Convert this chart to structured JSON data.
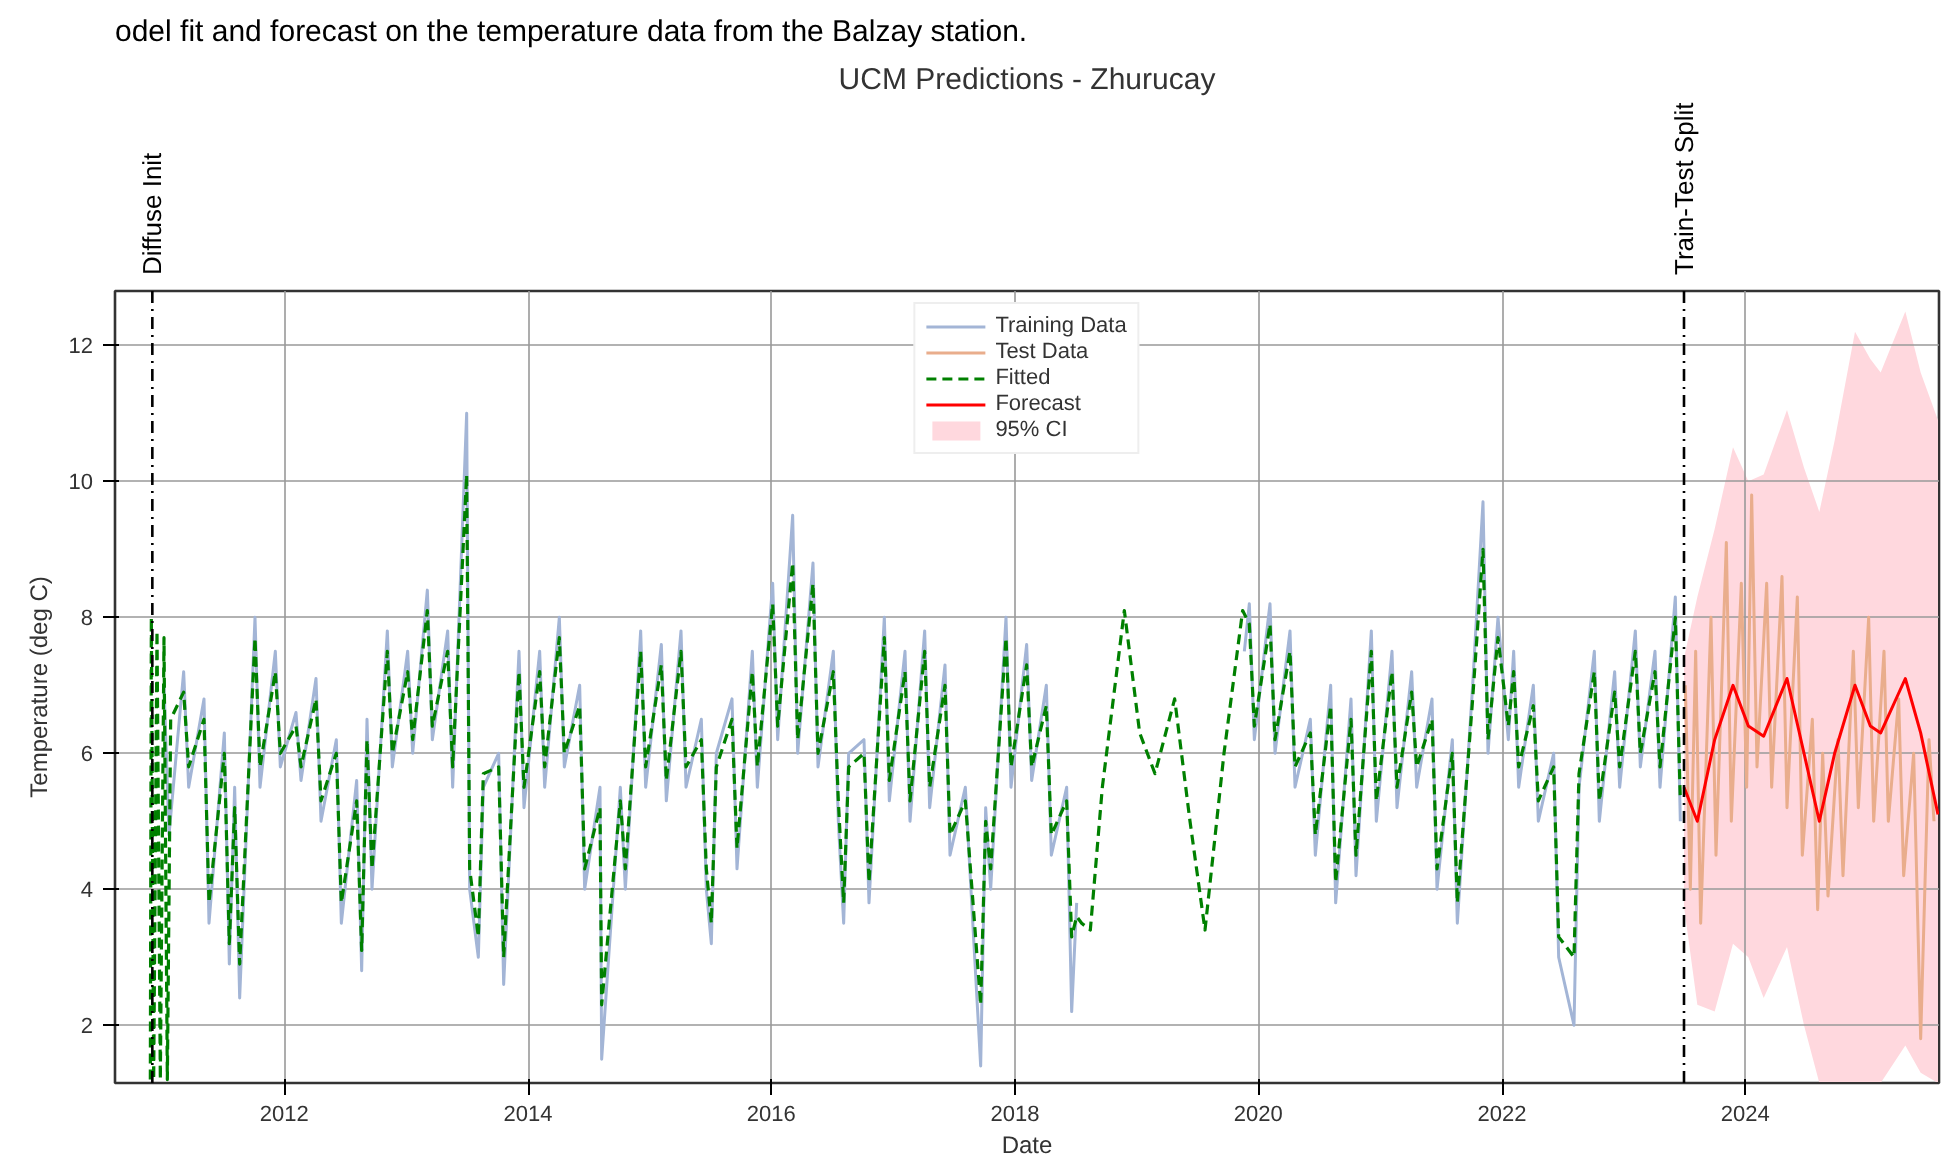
{
  "chart_data": {
    "type": "line",
    "title": "UCM Predictions - Zhurucay",
    "annotations": [
      "odel fit and forecast on the temperature data from the Balzay station."
    ],
    "xlabel": "Date",
    "ylabel": "Temperature (deg C)",
    "xlim": [
      "2010-08-11",
      "2025-08-04"
    ],
    "ylim": [
      1.15,
      12.8
    ],
    "xticks": [
      {
        "value": "2012",
        "label": "2012"
      },
      {
        "value": "2014",
        "label": "2014"
      },
      {
        "value": "2016",
        "label": "2016"
      },
      {
        "value": "2018",
        "label": "2018"
      },
      {
        "value": "2020",
        "label": "2020"
      },
      {
        "value": "2022",
        "label": "2022"
      },
      {
        "value": "2024",
        "label": "2024"
      }
    ],
    "yticks": [
      2,
      4,
      6,
      8,
      10,
      12
    ],
    "grid": true,
    "legend": "top",
    "ref_lines": [
      {
        "axis": "x",
        "value": "2010-12-01",
        "label": "Diffuse Init",
        "color": "#000000",
        "line_style": "dashdot"
      },
      {
        "axis": "x",
        "value": "2023-07-01",
        "label": "Train-Test Split",
        "color": "#000000",
        "line_style": "dashdot"
      }
    ],
    "series": [
      {
        "name": "Training Data",
        "color": "#a3b5d6",
        "line_style": "solid",
        "x": [
          "2011-01-05",
          "2011-01-20",
          "2011-03-05",
          "2011-03-20",
          "2011-05-05",
          "2011-05-20",
          "2011-07-05",
          "2011-07-20",
          "2011-08-05",
          "2011-08-20",
          "2011-10-05",
          "2011-10-20",
          "2011-12-05",
          "2011-12-20",
          "2012-02-05",
          "2012-02-20",
          "2012-04-05",
          "2012-04-20",
          "2012-06-05",
          "2012-06-20",
          "2012-08-05",
          "2012-08-20",
          "2012-09-05",
          "2012-09-20",
          "2012-11-05",
          "2012-11-20",
          "2013-01-05",
          "2013-01-20",
          "2013-03-05",
          "2013-03-20",
          "2013-05-05",
          "2013-05-20",
          "2013-07-01",
          "2013-07-10",
          "2013-08-05",
          "2013-08-20",
          "2013-10-05",
          "2013-10-20",
          "2013-12-05",
          "2013-12-20",
          "2014-02-05",
          "2014-02-20",
          "2014-04-05",
          "2014-04-20",
          "2014-06-05",
          "2014-06-20",
          "2014-08-05",
          "2014-08-10",
          "2014-10-05",
          "2014-10-20",
          "2014-12-05",
          "2014-12-20",
          "2015-02-05",
          "2015-02-20",
          "2015-04-05",
          "2015-04-20",
          "2015-06-05",
          "2015-06-20",
          "2015-07-05",
          "2015-07-20",
          "2015-09-05",
          "2015-09-20",
          "2015-11-05",
          "2015-11-20",
          "2016-01-05",
          "2016-01-20",
          "2016-03-05",
          "2016-03-20",
          "2016-05-05",
          "2016-05-20",
          "2016-07-05",
          "2016-07-20",
          "2016-08-05",
          "2016-08-20",
          "2016-10-05",
          "2016-10-20",
          "2016-12-05",
          "2016-12-20",
          "2017-02-05",
          "2017-02-20",
          "2017-04-05",
          "2017-04-20",
          "2017-06-05",
          "2017-06-20",
          "2017-08-05",
          "2017-09-20",
          "2017-10-05",
          "2017-10-20",
          "2017-12-05",
          "2017-12-20",
          "2018-02-05",
          "2018-02-20",
          "2018-04-05",
          "2018-04-20",
          "2018-06-05",
          "2018-06-20",
          "2018-07-05",
          "2019-01-01",
          "2019-11-20",
          "2019-12-05",
          "2019-12-20",
          "2020-02-05",
          "2020-02-20",
          "2020-04-05",
          "2020-04-20",
          "2020-06-05",
          "2020-06-20",
          "2020-08-05",
          "2020-08-20",
          "2020-10-05",
          "2020-10-20",
          "2020-12-05",
          "2020-12-20",
          "2021-02-05",
          "2021-02-20",
          "2021-04-05",
          "2021-04-20",
          "2021-06-05",
          "2021-06-20",
          "2021-08-05",
          "2021-08-20",
          "2021-10-05",
          "2021-11-05",
          "2021-11-20",
          "2021-12-20",
          "2022-01-20",
          "2022-02-05",
          "2022-02-20",
          "2022-04-05",
          "2022-04-20",
          "2022-06-05",
          "2022-06-20",
          "2022-08-05",
          "2022-08-20",
          "2022-10-05",
          "2022-10-20",
          "2022-12-05",
          "2022-12-20",
          "2023-02-05",
          "2023-02-20",
          "2023-04-05",
          "2023-04-20",
          "2023-06-05",
          "2023-06-20"
        ],
        "values": [
          7.0,
          4.8,
          7.2,
          5.5,
          6.8,
          3.5,
          6.3,
          2.9,
          5.5,
          2.4,
          8.0,
          5.5,
          7.5,
          5.8,
          6.6,
          5.6,
          7.1,
          5.0,
          6.2,
          3.5,
          5.6,
          2.8,
          6.5,
          4.0,
          7.8,
          5.8,
          7.5,
          6.0,
          8.4,
          6.2,
          7.8,
          5.5,
          11.0,
          4.0,
          3.0,
          5.5,
          6.0,
          2.6,
          7.5,
          5.2,
          7.5,
          5.5,
          8.0,
          5.8,
          7.0,
          4.0,
          5.5,
          1.5,
          5.5,
          4.0,
          7.8,
          5.5,
          7.6,
          5.3,
          7.8,
          5.5,
          6.5,
          4.0,
          3.2,
          6.0,
          6.8,
          4.3,
          7.5,
          5.5,
          8.5,
          6.2,
          9.5,
          6.0,
          8.8,
          5.8,
          7.5,
          5.0,
          3.5,
          6.0,
          6.2,
          3.8,
          8.0,
          5.3,
          7.5,
          5.0,
          7.8,
          5.2,
          7.3,
          4.5,
          5.5,
          1.4,
          5.2,
          4.0,
          8.0,
          5.5,
          7.6,
          5.6,
          7.0,
          4.5,
          5.5,
          2.2,
          3.8,
          null,
          7.5,
          8.2,
          6.2,
          8.2,
          6.0,
          7.8,
          5.5,
          6.5,
          4.5,
          7.0,
          3.8,
          6.8,
          4.2,
          7.8,
          5.0,
          7.5,
          5.2,
          7.2,
          5.5,
          6.8,
          4.0,
          6.2,
          3.5,
          7.0,
          9.7,
          6.0,
          8.0,
          6.2,
          7.5,
          5.5,
          7.0,
          5.0,
          6.0,
          3.0,
          2.0,
          5.5,
          7.5,
          5.0,
          7.2,
          5.5,
          7.8,
          5.8,
          7.5,
          5.5,
          8.3,
          5.0
        ]
      },
      {
        "name": "Test Data",
        "color": "#e9ad8c",
        "line_style": "solid",
        "x": [
          "2023-07-05",
          "2023-07-20",
          "2023-08-05",
          "2023-08-20",
          "2023-09-20",
          "2023-10-05",
          "2023-11-05",
          "2023-11-20",
          "2023-12-20",
          "2024-01-05",
          "2024-01-20",
          "2024-02-05",
          "2024-03-05",
          "2024-03-20",
          "2024-04-20",
          "2024-05-05",
          "2024-06-05",
          "2024-06-20",
          "2024-07-20",
          "2024-08-05",
          "2024-08-20",
          "2024-09-05",
          "2024-10-05",
          "2024-10-20",
          "2024-11-20",
          "2024-12-05",
          "2025-01-05",
          "2025-01-20",
          "2025-02-20",
          "2025-03-05",
          "2025-04-05",
          "2025-04-20",
          "2025-05-20",
          "2025-06-10",
          "2025-07-05",
          "2025-07-20"
        ],
        "values": [
          7.0,
          4.0,
          7.5,
          3.5,
          8.0,
          4.5,
          9.1,
          5.0,
          8.5,
          5.5,
          9.8,
          5.8,
          8.5,
          5.5,
          8.6,
          5.2,
          8.3,
          4.5,
          6.5,
          3.7,
          6.0,
          3.9,
          6.2,
          4.2,
          7.5,
          5.2,
          8.0,
          5.0,
          7.5,
          5.0,
          6.8,
          4.2,
          6.0,
          1.8,
          6.2,
          5.0
        ]
      },
      {
        "name": "Fitted",
        "color": "#008000",
        "line_style": "dashed",
        "x": [
          "2010-11-25",
          "2010-11-28",
          "2010-12-05",
          "2010-12-15",
          "2010-12-25",
          "2011-01-05",
          "2011-01-15",
          "2011-01-25",
          "2011-03-05",
          "2011-03-20",
          "2011-05-05",
          "2011-05-20",
          "2011-07-05",
          "2011-07-20",
          "2011-08-05",
          "2011-08-20",
          "2011-10-05",
          "2011-10-20",
          "2011-12-05",
          "2011-12-20",
          "2012-02-05",
          "2012-02-20",
          "2012-04-05",
          "2012-04-20",
          "2012-06-05",
          "2012-06-20",
          "2012-08-05",
          "2012-08-20",
          "2012-09-05",
          "2012-09-20",
          "2012-11-05",
          "2012-11-20",
          "2013-01-05",
          "2013-01-20",
          "2013-03-05",
          "2013-03-20",
          "2013-05-05",
          "2013-05-20",
          "2013-07-01",
          "2013-07-10",
          "2013-08-05",
          "2013-08-20",
          "2013-10-05",
          "2013-10-20",
          "2013-12-05",
          "2013-12-20",
          "2014-02-05",
          "2014-02-20",
          "2014-04-05",
          "2014-04-20",
          "2014-06-05",
          "2014-06-20",
          "2014-08-05",
          "2014-08-10",
          "2014-10-05",
          "2014-10-20",
          "2014-12-05",
          "2014-12-20",
          "2015-02-05",
          "2015-02-20",
          "2015-04-05",
          "2015-04-20",
          "2015-06-05",
          "2015-06-20",
          "2015-07-05",
          "2015-07-20",
          "2015-09-05",
          "2015-09-20",
          "2015-11-05",
          "2015-11-20",
          "2016-01-05",
          "2016-01-20",
          "2016-03-05",
          "2016-03-20",
          "2016-05-05",
          "2016-05-20",
          "2016-07-05",
          "2016-07-20",
          "2016-08-05",
          "2016-08-20",
          "2016-10-05",
          "2016-10-20",
          "2016-12-05",
          "2016-12-20",
          "2017-02-05",
          "2017-02-20",
          "2017-04-05",
          "2017-04-20",
          "2017-06-05",
          "2017-06-20",
          "2017-08-05",
          "2017-09-20",
          "2017-10-05",
          "2017-10-20",
          "2017-12-05",
          "2017-12-20",
          "2018-02-05",
          "2018-02-20",
          "2018-04-05",
          "2018-04-20",
          "2018-06-05",
          "2018-06-20",
          "2018-07-05",
          "2018-07-20",
          "2018-08-15",
          "2018-09-20",
          "2018-11-25",
          "2019-01-10",
          "2019-02-25",
          "2019-04-25",
          "2019-06-10",
          "2019-07-25",
          "2019-09-20",
          "2019-11-15",
          "2019-12-05",
          "2019-12-20",
          "2020-02-05",
          "2020-02-20",
          "2020-04-05",
          "2020-04-20",
          "2020-06-05",
          "2020-06-20",
          "2020-08-05",
          "2020-08-20",
          "2020-10-05",
          "2020-10-20",
          "2020-12-05",
          "2020-12-20",
          "2021-02-05",
          "2021-02-20",
          "2021-04-05",
          "2021-04-20",
          "2021-06-05",
          "2021-06-20",
          "2021-08-05",
          "2021-08-20",
          "2021-10-05",
          "2021-11-05",
          "2021-11-20",
          "2021-12-20",
          "2022-01-20",
          "2022-02-05",
          "2022-02-20",
          "2022-04-05",
          "2022-04-20",
          "2022-06-05",
          "2022-06-20",
          "2022-08-05",
          "2022-08-20",
          "2022-10-05",
          "2022-10-20",
          "2022-12-05",
          "2022-12-20",
          "2023-02-05",
          "2023-02-20",
          "2023-04-05",
          "2023-04-20",
          "2023-06-05",
          "2023-06-20"
        ],
        "values": [
          1.2,
          8.0,
          1.2,
          7.8,
          1.2,
          7.7,
          1.2,
          6.5,
          6.9,
          5.8,
          6.5,
          3.8,
          6.0,
          3.2,
          5.2,
          2.9,
          7.7,
          5.8,
          7.2,
          6.0,
          6.4,
          5.8,
          6.8,
          5.3,
          6.0,
          3.8,
          5.3,
          3.1,
          6.2,
          4.3,
          7.5,
          6.0,
          7.2,
          6.2,
          8.1,
          6.4,
          7.5,
          5.8,
          10.1,
          4.3,
          3.3,
          5.7,
          5.8,
          3.0,
          7.2,
          5.5,
          7.2,
          5.8,
          7.7,
          6.0,
          6.7,
          4.3,
          5.2,
          2.3,
          5.3,
          4.3,
          7.5,
          5.8,
          7.3,
          5.6,
          7.5,
          5.8,
          6.2,
          4.3,
          3.5,
          5.8,
          6.5,
          4.6,
          7.2,
          5.8,
          8.2,
          6.4,
          8.8,
          6.2,
          8.5,
          6.0,
          7.2,
          5.3,
          3.8,
          5.8,
          6.0,
          4.1,
          7.7,
          5.6,
          7.2,
          5.3,
          7.5,
          5.5,
          7.0,
          4.8,
          5.3,
          2.3,
          5.0,
          4.3,
          7.7,
          5.8,
          7.3,
          5.8,
          6.7,
          4.8,
          5.3,
          3.3,
          3.6,
          3.5,
          3.4,
          5.5,
          8.1,
          6.3,
          5.7,
          6.8,
          5.0,
          3.4,
          6.0,
          8.1,
          7.9,
          6.4,
          7.9,
          6.2,
          7.5,
          5.8,
          6.3,
          4.8,
          6.7,
          4.1,
          6.5,
          4.5,
          7.5,
          5.3,
          7.2,
          5.5,
          6.9,
          5.8,
          6.5,
          4.3,
          6.0,
          3.8,
          6.8,
          9.0,
          6.2,
          7.7,
          6.4,
          7.2,
          5.8,
          6.7,
          5.3,
          5.8,
          3.3,
          3.0,
          5.7,
          7.2,
          5.3,
          6.9,
          5.8,
          7.5,
          6.0,
          7.2,
          5.8,
          8.0,
          5.3
        ]
      },
      {
        "name": "Forecast",
        "color": "#ff0000",
        "line_style": "solid",
        "x": [
          "2023-07-01",
          "2023-08-10",
          "2023-10-01",
          "2023-11-25",
          "2024-01-10",
          "2024-02-25",
          "2024-05-05",
          "2024-06-25",
          "2024-08-10",
          "2024-09-25",
          "2024-11-25",
          "2025-01-10",
          "2025-02-10",
          "2025-04-25",
          "2025-06-10",
          "2025-08-01"
        ],
        "values": [
          5.5,
          5.0,
          6.2,
          7.0,
          6.4,
          6.25,
          7.1,
          6.0,
          5.0,
          6.0,
          7.0,
          6.4,
          6.3,
          7.1,
          6.3,
          5.1
        ]
      },
      {
        "name": "95% CI",
        "type": "area",
        "color": "#ffd8de",
        "x": [
          "2023-07-01",
          "2023-08-10",
          "2023-10-01",
          "2023-11-25",
          "2024-01-10",
          "2024-02-25",
          "2024-05-05",
          "2024-06-25",
          "2024-08-10",
          "2024-09-25",
          "2024-11-25",
          "2025-01-10",
          "2025-02-10",
          "2025-04-25",
          "2025-06-10",
          "2025-08-01"
        ],
        "values": [
          null,
          null,
          null,
          null,
          null,
          null,
          null,
          null,
          null,
          null,
          null,
          null,
          null,
          null,
          null,
          null
        ],
        "lower": [
          3.75,
          2.3,
          2.2,
          3.2,
          3.0,
          2.4,
          3.15,
          2.0,
          1.15,
          1.15,
          1.15,
          1.15,
          1.15,
          1.7,
          1.3,
          1.15
        ],
        "upper": [
          7.4,
          8.3,
          9.3,
          10.5,
          10.0,
          10.1,
          11.05,
          10.2,
          9.55,
          10.6,
          12.2,
          11.8,
          11.6,
          12.5,
          11.6,
          10.9
        ]
      }
    ]
  }
}
